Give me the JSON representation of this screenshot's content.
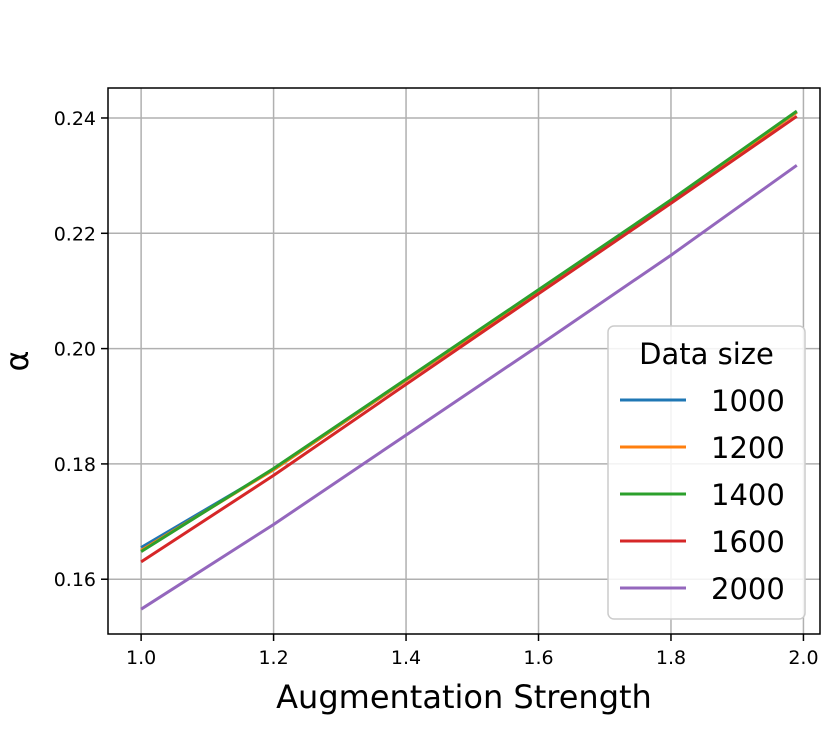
{
  "chart_data": {
    "type": "line",
    "title": "",
    "xlabel": "Augmentation Strength",
    "ylabel": "α",
    "xlim": [
      0.95,
      2.025
    ],
    "ylim": [
      0.1505,
      0.2452
    ],
    "xticks": [
      1.0,
      1.2,
      1.4,
      1.6,
      1.8,
      2.0
    ],
    "xtick_labels": [
      "1.0",
      "1.2",
      "1.4",
      "1.6",
      "1.8",
      "2.0"
    ],
    "yticks": [
      0.16,
      0.18,
      0.2,
      0.22,
      0.24
    ],
    "ytick_labels": [
      "0.16",
      "0.18",
      "0.20",
      "0.22",
      "0.24"
    ],
    "grid": true,
    "legend": {
      "title": "Data size",
      "position": "lower-right"
    },
    "x": [
      1.0,
      1.2,
      1.4,
      1.6,
      1.8,
      1.99
    ],
    "series": [
      {
        "name": "1000",
        "color": "#1f77b4",
        "values": [
          0.1655,
          0.179,
          0.1945,
          0.21,
          0.2255,
          0.241
        ]
      },
      {
        "name": "1200",
        "color": "#ff7f0e",
        "values": [
          0.165,
          0.179,
          0.1945,
          0.21,
          0.2255,
          0.241
        ]
      },
      {
        "name": "1400",
        "color": "#2ca02c",
        "values": [
          0.1648,
          0.1792,
          0.1947,
          0.2102,
          0.2258,
          0.2412
        ]
      },
      {
        "name": "1600",
        "color": "#d62728",
        "values": [
          0.163,
          0.178,
          0.1938,
          0.2095,
          0.2252,
          0.2403
        ]
      },
      {
        "name": "2000",
        "color": "#9467bd",
        "values": [
          0.1548,
          0.1695,
          0.185,
          0.2005,
          0.2162,
          0.2318
        ]
      }
    ]
  }
}
